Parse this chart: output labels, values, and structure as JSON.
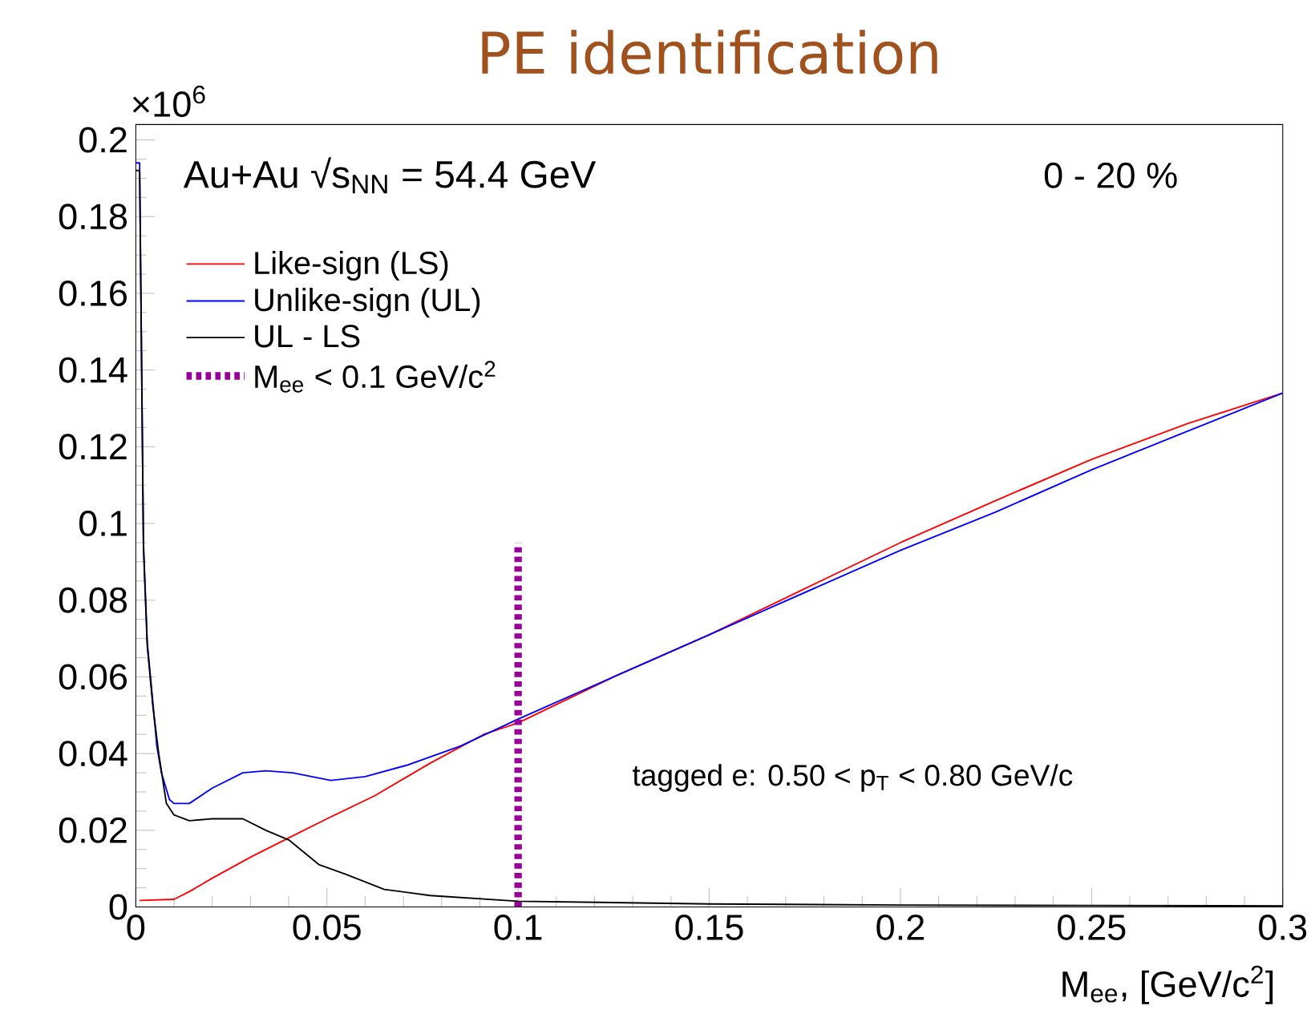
{
  "chart_data": {
    "type": "line",
    "title": "PE identification",
    "xlabel": "M$_{ee}$, [GeV/c$^{2}$]",
    "xlim": [
      0,
      0.3
    ],
    "ylim": [
      0,
      0.204
    ],
    "xticks": [
      0,
      0.05,
      0.1,
      0.15,
      0.2,
      0.25,
      0.3
    ],
    "yticks": [
      0,
      0.02,
      0.04,
      0.06,
      0.08,
      0.1,
      0.12,
      0.14,
      0.16,
      0.18,
      0.2
    ],
    "legend": "top left",
    "marker": "none",
    "grid": false,
    "annotations": [
      "×10$^{6}$",
      "Au+Au √s$_{NN}$ = 54.4 GeV",
      "0 - 20 %",
      "tagged e: 0.50 < p$_{T}$ < 0.80 GeV/c"
    ],
    "series": [
      {
        "name": "Like-sign (LS)",
        "color": "#ff0000",
        "x": [
          0.001,
          0.01,
          0.014,
          0.02,
          0.03,
          0.04,
          0.05,
          0.0625,
          0.077,
          0.091,
          0.1,
          0.125,
          0.15,
          0.175,
          0.2,
          0.225,
          0.25,
          0.275,
          0.3
        ],
        "values": [
          0.0017,
          0.002,
          0.004,
          0.0075,
          0.013,
          0.018,
          0.023,
          0.029,
          0.0375,
          0.045,
          0.048,
          0.06,
          0.071,
          0.083,
          0.095,
          0.106,
          0.1167,
          0.126,
          0.134
        ]
      },
      {
        "name": "Unlike-sign (UL)",
        "color": "#0000ff",
        "x": [
          0.0,
          0.001,
          0.002,
          0.003,
          0.0045,
          0.0055,
          0.0067,
          0.0088,
          0.01,
          0.014,
          0.02,
          0.028,
          0.034,
          0.041,
          0.051,
          0.06,
          0.071,
          0.085,
          0.1,
          0.125,
          0.15,
          0.175,
          0.2,
          0.225,
          0.25,
          0.275,
          0.3
        ],
        "values": [
          0.194,
          0.194,
          0.095,
          0.069,
          0.053,
          0.042,
          0.035,
          0.028,
          0.027,
          0.027,
          0.031,
          0.035,
          0.0355,
          0.035,
          0.033,
          0.034,
          0.037,
          0.042,
          0.049,
          0.06,
          0.071,
          0.082,
          0.093,
          0.103,
          0.114,
          0.124,
          0.134
        ]
      },
      {
        "name": "UL - LS",
        "color": "#000000",
        "x": [
          0.0,
          0.001,
          0.002,
          0.003,
          0.0045,
          0.006,
          0.008,
          0.01,
          0.014,
          0.02,
          0.028,
          0.034,
          0.04,
          0.048,
          0.055,
          0.065,
          0.077,
          0.1,
          0.15,
          0.2,
          0.25,
          0.3
        ],
        "values": [
          0.192,
          0.192,
          0.094,
          0.068,
          0.052,
          0.04,
          0.027,
          0.024,
          0.0225,
          0.023,
          0.023,
          0.02,
          0.0175,
          0.011,
          0.0085,
          0.0046,
          0.003,
          0.0015,
          0.0008,
          0.0005,
          0.0004,
          0.0003
        ]
      },
      {
        "name": "M$_{ee}$ < 0.1 GeV/c$^{2}$",
        "type": "line",
        "line_style": "dotted",
        "color": "#990099",
        "x": [
          0.1,
          0.1
        ],
        "values": [
          0,
          0.095
        ]
      }
    ]
  }
}
